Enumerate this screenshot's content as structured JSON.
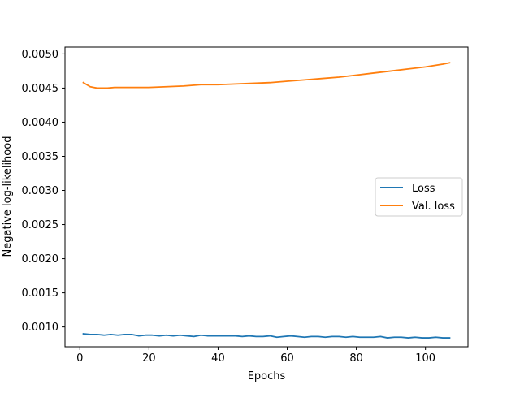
{
  "chart_data": {
    "type": "line",
    "title": "",
    "xlabel": "Epochs",
    "ylabel": "Negative log-likelihood",
    "xlim": [
      -4.3,
      112.3
    ],
    "ylim": [
      0.00071,
      0.0051
    ],
    "xticks": [
      0,
      20,
      40,
      60,
      80,
      100
    ],
    "xtick_labels": [
      "0",
      "20",
      "40",
      "60",
      "80",
      "100"
    ],
    "yticks": [
      0.001,
      0.0015,
      0.002,
      0.0025,
      0.003,
      0.0035,
      0.004,
      0.0045,
      0.005
    ],
    "ytick_labels": [
      "0.0010",
      "0.0015",
      "0.0020",
      "0.0025",
      "0.0030",
      "0.0035",
      "0.0040",
      "0.0045",
      "0.0050"
    ],
    "grid": false,
    "legend_position": "right",
    "series": [
      {
        "name": "Loss",
        "color": "#1f77b4",
        "x": [
          1,
          3,
          5,
          7,
          9,
          11,
          13,
          15,
          17,
          19,
          21,
          23,
          25,
          27,
          29,
          31,
          33,
          35,
          37,
          39,
          41,
          43,
          45,
          47,
          49,
          51,
          53,
          55,
          57,
          59,
          61,
          63,
          65,
          67,
          69,
          71,
          73,
          75,
          77,
          79,
          81,
          83,
          85,
          87,
          89,
          91,
          93,
          95,
          97,
          99,
          101,
          103,
          105,
          107
        ],
        "y": [
          0.0009,
          0.00089,
          0.00089,
          0.00088,
          0.00089,
          0.00088,
          0.00089,
          0.00089,
          0.00087,
          0.00088,
          0.00088,
          0.00087,
          0.00088,
          0.00087,
          0.00088,
          0.00087,
          0.00086,
          0.00088,
          0.00087,
          0.00087,
          0.00087,
          0.00087,
          0.00087,
          0.00086,
          0.00087,
          0.00086,
          0.00086,
          0.00087,
          0.00085,
          0.00086,
          0.00087,
          0.00086,
          0.00085,
          0.00086,
          0.00086,
          0.00085,
          0.00086,
          0.00086,
          0.00085,
          0.00086,
          0.00085,
          0.00085,
          0.00085,
          0.00086,
          0.00084,
          0.00085,
          0.00085,
          0.00084,
          0.00085,
          0.00084,
          0.00084,
          0.00085,
          0.00084,
          0.00084
        ]
      },
      {
        "name": "Val. loss",
        "color": "#ff7f0e",
        "x": [
          1,
          2,
          3,
          4,
          5,
          6,
          7,
          8,
          10,
          12,
          15,
          20,
          25,
          30,
          35,
          40,
          45,
          50,
          55,
          60,
          65,
          70,
          75,
          80,
          85,
          90,
          95,
          100,
          105,
          107
        ],
        "y": [
          0.00458,
          0.00455,
          0.00452,
          0.00451,
          0.0045,
          0.0045,
          0.0045,
          0.0045,
          0.00451,
          0.00451,
          0.00451,
          0.00451,
          0.00452,
          0.00453,
          0.00455,
          0.00455,
          0.00456,
          0.00457,
          0.00458,
          0.0046,
          0.00462,
          0.00464,
          0.00466,
          0.00469,
          0.00472,
          0.00475,
          0.00478,
          0.00481,
          0.00485,
          0.00487
        ]
      }
    ]
  }
}
